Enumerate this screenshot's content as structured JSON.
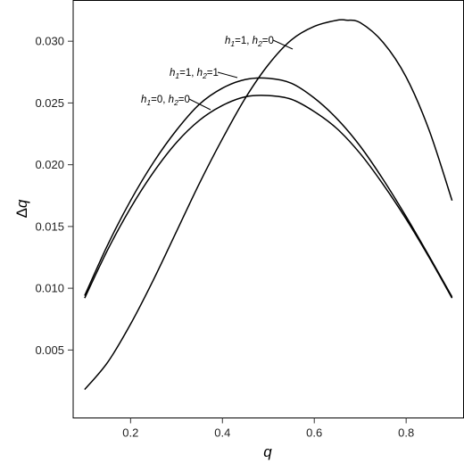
{
  "chart_data": {
    "type": "line",
    "title": "",
    "xlabel": "q",
    "ylabel_symbol": "Δ",
    "ylabel_var": "q",
    "xlim": [
      0.075,
      0.925
    ],
    "ylim": [
      -0.0005,
      0.0333
    ],
    "xticks": [
      0.2,
      0.4,
      0.6,
      0.8
    ],
    "xtick_labels": [
      "0.2",
      "0.4",
      "0.6",
      "0.8"
    ],
    "yticks": [
      0.005,
      0.01,
      0.015,
      0.02,
      0.025,
      0.03
    ],
    "ytick_labels": [
      "0.005",
      "0.010",
      "0.015",
      "0.020",
      "0.025",
      "0.030"
    ],
    "grid": false,
    "series": [
      {
        "label_parts": [
          "h",
          "1",
          "=0, ",
          "h",
          "2",
          "=0"
        ],
        "x": [
          0.1,
          0.15,
          0.2,
          0.25,
          0.3,
          0.35,
          0.4,
          0.45,
          0.5,
          0.55,
          0.6,
          0.65,
          0.7,
          0.75,
          0.8,
          0.85,
          0.9
        ],
        "y": [
          0.0092,
          0.0131,
          0.0165,
          0.0194,
          0.0218,
          0.0236,
          0.0248,
          0.0255,
          0.0256,
          0.0253,
          0.0243,
          0.0229,
          0.0209,
          0.0184,
          0.0156,
          0.0125,
          0.0092
        ]
      },
      {
        "label_parts": [
          "h",
          "1",
          "=1, ",
          "h",
          "2",
          "=1"
        ],
        "x": [
          0.1,
          0.15,
          0.2,
          0.25,
          0.3,
          0.35,
          0.4,
          0.45,
          0.5,
          0.55,
          0.6,
          0.65,
          0.7,
          0.75,
          0.8,
          0.85,
          0.9
        ],
        "y": [
          0.0094,
          0.0135,
          0.0171,
          0.0202,
          0.0228,
          0.0249,
          0.0262,
          0.0269,
          0.027,
          0.0266,
          0.0254,
          0.0237,
          0.0215,
          0.0188,
          0.0158,
          0.0126,
          0.0093
        ]
      },
      {
        "label_parts": [
          "h",
          "1",
          "=1, ",
          "h",
          "2",
          "=0"
        ],
        "x": [
          0.1,
          0.15,
          0.2,
          0.25,
          0.3,
          0.35,
          0.4,
          0.45,
          0.5,
          0.55,
          0.6,
          0.65,
          0.67,
          0.7,
          0.75,
          0.8,
          0.85,
          0.9
        ],
        "y": [
          0.0018,
          0.004,
          0.0071,
          0.0107,
          0.0146,
          0.0185,
          0.0221,
          0.0254,
          0.0281,
          0.0301,
          0.0312,
          0.0317,
          0.0317,
          0.0315,
          0.0299,
          0.0271,
          0.0228,
          0.0171
        ]
      }
    ]
  }
}
